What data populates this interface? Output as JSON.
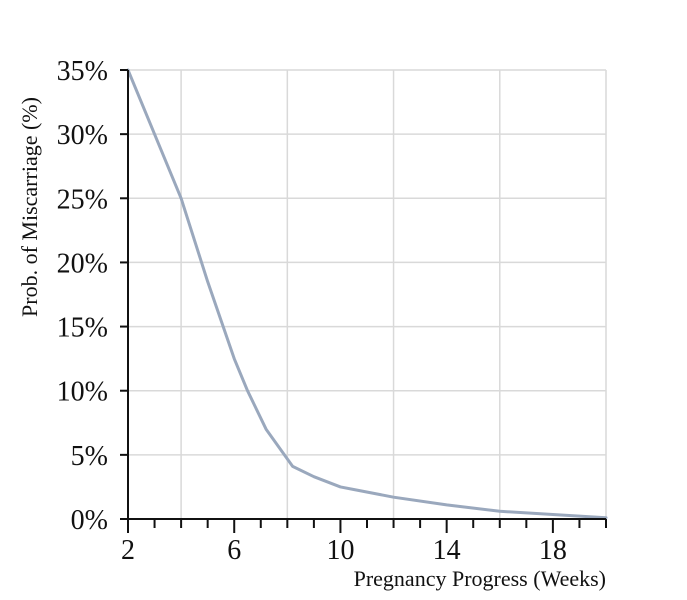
{
  "chart_data": {
    "type": "line",
    "title": "",
    "xlabel": "Pregnancy Progress (Weeks)",
    "ylabel": "Prob. of Miscarriage (%)",
    "xlim": [
      2,
      20
    ],
    "ylim": [
      0,
      35
    ],
    "x_ticks": [
      2,
      6,
      10,
      14,
      18
    ],
    "x_tick_labels": [
      "2",
      "6",
      "10",
      "14",
      "18"
    ],
    "x_minor_ticks": [
      3,
      4,
      5,
      7,
      8,
      9,
      11,
      12,
      13,
      15,
      16,
      17,
      19,
      20
    ],
    "x_grid": [
      2,
      4,
      8,
      12,
      16,
      20
    ],
    "y_ticks": [
      0,
      5,
      10,
      15,
      20,
      25,
      30,
      35
    ],
    "y_tick_labels": [
      "0%",
      "5%",
      "10%",
      "15%",
      "20%",
      "25%",
      "30%",
      "35%"
    ],
    "grid": true,
    "line_color": "#9aa8bd",
    "series": [
      {
        "x": [
          2,
          3,
          4,
          5,
          6,
          6.5,
          7.2,
          8.2,
          9,
          10,
          10.5,
          12,
          14,
          16,
          18,
          20
        ],
        "y": [
          35,
          30,
          25,
          18.5,
          12.5,
          10,
          7,
          4.1,
          3.3,
          2.5,
          2.3,
          1.7,
          1.1,
          0.6,
          0.35,
          0.1
        ]
      }
    ]
  }
}
